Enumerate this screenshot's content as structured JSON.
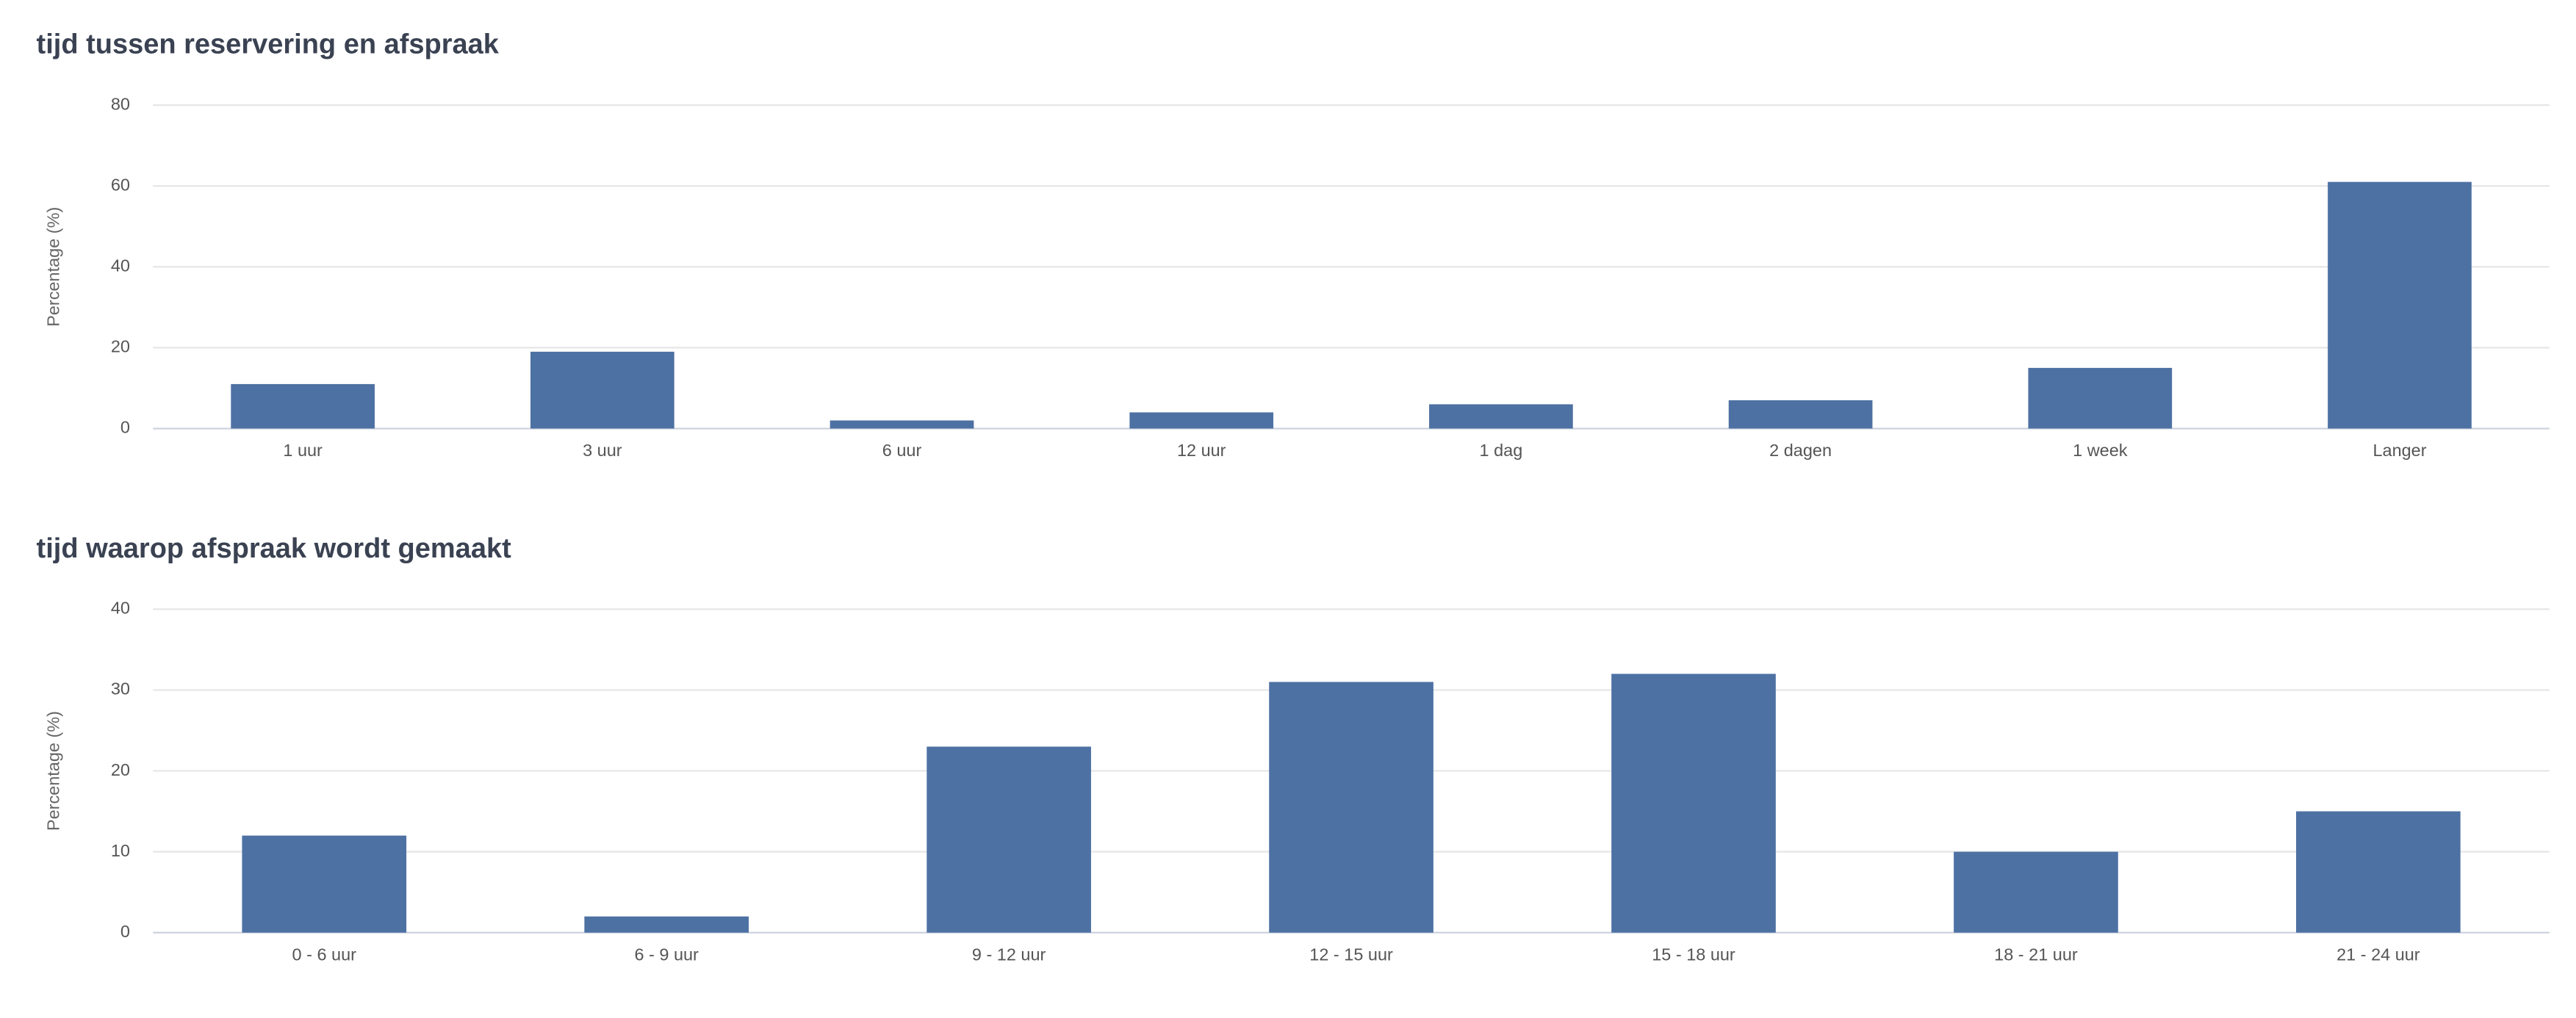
{
  "chart_data": [
    {
      "type": "bar",
      "title": "tijd tussen reservering en afspraak",
      "y_label": "Percentage (%)",
      "categories": [
        "1 uur",
        "3 uur",
        "6 uur",
        "12 uur",
        "1 dag",
        "2 dagen",
        "1 week",
        "Langer"
      ],
      "values": [
        11,
        19,
        2,
        4,
        6,
        7,
        15,
        61
      ],
      "color": "#4e71a3",
      "ylim": [
        0,
        80
      ],
      "yticks": [
        0,
        20,
        40,
        60,
        80
      ],
      "grid": true
    },
    {
      "type": "bar",
      "title": "tijd waarop afspraak wordt gemaakt",
      "y_label": "Percentage (%)",
      "categories": [
        "0 - 6 uur",
        "6 - 9 uur",
        "9 - 12 uur",
        "12 - 15 uur",
        "15 - 18 uur",
        "18 - 21 uur",
        "21 - 24 uur"
      ],
      "values": [
        12,
        2,
        23,
        31,
        32,
        10,
        15
      ],
      "color": "#4e71a3",
      "ylim": [
        0,
        40
      ],
      "yticks": [
        0,
        10,
        20,
        30,
        40
      ],
      "grid": true
    }
  ]
}
